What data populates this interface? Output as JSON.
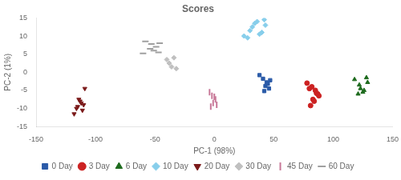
{
  "chart_data": {
    "type": "scatter",
    "title": "Scores",
    "x_label": "PC-1 (98%)",
    "y_label": "PC-2 (1%)",
    "xlim": [
      -150,
      150
    ],
    "ylim": [
      -15,
      15
    ],
    "xticks": [
      -150,
      -100,
      -50,
      0,
      50,
      100,
      150
    ],
    "yticks": [
      -15,
      -10,
      -5,
      0,
      5,
      10,
      15
    ],
    "grid": false,
    "legend": "bottom",
    "series": [
      {
        "name": "0 Day",
        "marker": "square",
        "color": "#2B5BA8",
        "x": [
          38,
          41,
          44,
          47,
          43,
          46,
          42,
          45
        ],
        "values": [
          -0.8,
          -1.8,
          -2.8,
          -2.2,
          -3.8,
          -4.5,
          -5.2,
          -3.2
        ]
      },
      {
        "name": "3 Day",
        "marker": "circle",
        "color": "#CC2222",
        "x": [
          78,
          82,
          85,
          88,
          83,
          86,
          80,
          84,
          87,
          81
        ],
        "values": [
          -3.0,
          -4.0,
          -5.0,
          -6.5,
          -7.5,
          -5.8,
          -4.5,
          -8.0,
          -6.0,
          -9.2
        ]
      },
      {
        "name": "6 Day",
        "marker": "triangle",
        "color": "#1E6B1E",
        "x": [
          118,
          122,
          126,
          121,
          129,
          125,
          123,
          128
        ],
        "values": [
          -2.0,
          -3.5,
          -5.0,
          -6.0,
          -2.8,
          -5.5,
          -4.5,
          -1.5
        ]
      },
      {
        "name": "10 Day",
        "marker": "diamond",
        "color": "#87CEEB",
        "x": [
          28,
          32,
          36,
          40,
          34,
          38,
          30,
          43,
          25,
          42
        ],
        "values": [
          9.5,
          12.5,
          14.0,
          11.0,
          13.5,
          10.5,
          11.5,
          13.0,
          10.0,
          14.5
        ]
      },
      {
        "name": "20 Day",
        "marker": "triangle_down",
        "color": "#7B1A1A",
        "x": [
          -112,
          -115,
          -110,
          -118,
          -113,
          -116,
          -111,
          -114,
          -109
        ],
        "values": [
          -8.5,
          -9.5,
          -9.0,
          -11.5,
          -8.0,
          -10.0,
          -10.5,
          -7.5,
          -4.5
        ]
      },
      {
        "name": "30 Day",
        "marker": "diamond",
        "color": "#C0C0C0",
        "x": [
          -40,
          -36,
          -34,
          -38,
          -32
        ],
        "values": [
          3.5,
          1.5,
          4.0,
          2.5,
          1.0
        ]
      },
      {
        "name": "45 Day",
        "marker": "vline",
        "color": "#C87898",
        "x": [
          -4,
          -2,
          1,
          -1,
          2,
          -3,
          0
        ],
        "values": [
          -5.5,
          -6.5,
          -7.5,
          -8.5,
          -9.0,
          -9.5,
          -6.8
        ]
      },
      {
        "name": "60 Day",
        "marker": "hline",
        "color": "#A0A0A0",
        "x": [
          -58,
          -53,
          -49,
          -54,
          -47,
          -51,
          -46,
          -60
        ],
        "values": [
          8.5,
          7.8,
          7.0,
          6.5,
          5.5,
          6.0,
          8.0,
          5.2
        ]
      }
    ]
  }
}
